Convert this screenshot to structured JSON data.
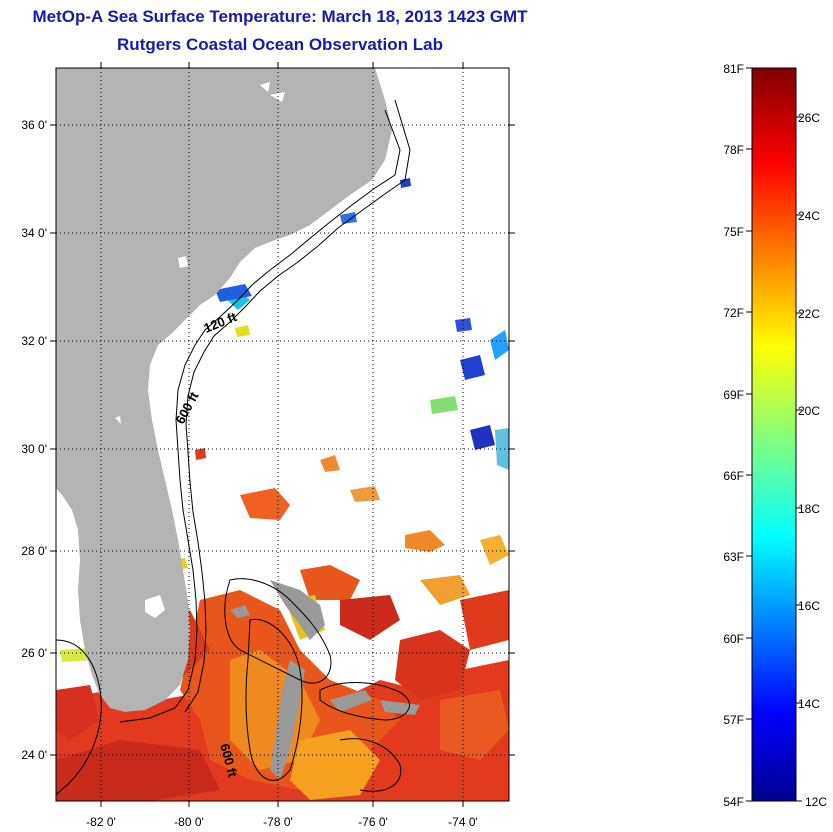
{
  "header": {
    "title": "MetOp-A Sea Surface Temperature:  March 18, 2013 1423 GMT",
    "subtitle": "Rutgers Coastal Ocean Observation Lab"
  },
  "map": {
    "lat_labels": [
      "36 0'",
      "34 0'",
      "32 0'",
      "30 0'",
      "28 0'",
      "26 0'",
      "24 0'"
    ],
    "lon_labels": [
      "-82 0'",
      "-80 0'",
      "-78 0'",
      "-76 0'",
      "-74 0'"
    ],
    "lat_range": [
      23.0,
      37.0
    ],
    "lon_range": [
      -83.0,
      -73.0
    ],
    "contour_labels": [
      "120 ft",
      "600 ft",
      "600 ft"
    ],
    "land_color": "#b4b4b4",
    "grid": "dotted"
  },
  "colorbar": {
    "fahrenheit_labels": [
      "81F",
      "78F",
      "75F",
      "72F",
      "69F",
      "66F",
      "63F",
      "60F",
      "57F",
      "54F"
    ],
    "celsius_labels": [
      "26C",
      "24C",
      "22C",
      "20C",
      "18C",
      "16C",
      "14C",
      "12C"
    ],
    "range_c": [
      12,
      27.2
    ],
    "colormap": "jet"
  }
}
